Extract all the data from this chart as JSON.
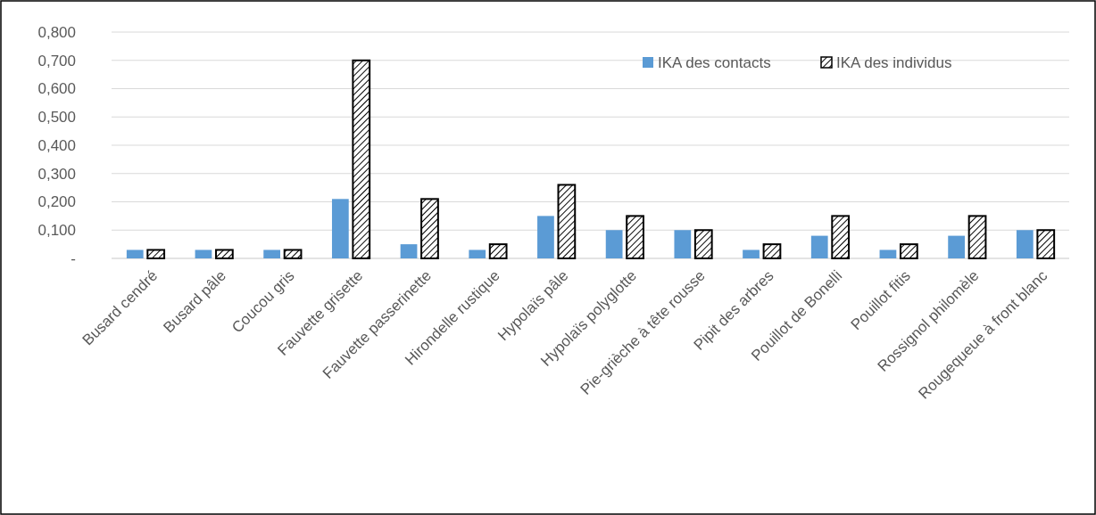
{
  "chart_data": {
    "type": "bar",
    "categories": [
      "Busard cendré",
      "Busard pâle",
      "Coucou gris",
      "Fauvette grisette",
      "Fauvette passerinette",
      "Hirondelle rustique",
      "Hypolaïs pâle",
      "Hypolaïs polyglotte",
      "Pie-grièche à tête rousse",
      "Pipit des arbres",
      "Pouillot de Bonelli",
      "Pouillot fitis",
      "Rossignol philomèle",
      "Rougequeue à front blanc"
    ],
    "series": [
      {
        "name": "IKA des contacts",
        "color": "#5b9bd5",
        "values": [
          0.03,
          0.03,
          0.03,
          0.21,
          0.05,
          0.03,
          0.15,
          0.1,
          0.1,
          0.03,
          0.08,
          0.03,
          0.08,
          0.1
        ]
      },
      {
        "name": "IKA des individus",
        "color": "#000000",
        "values": [
          0.03,
          0.03,
          0.03,
          0.7,
          0.21,
          0.05,
          0.26,
          0.15,
          0.1,
          0.05,
          0.15,
          0.05,
          0.15,
          0.1
        ]
      }
    ],
    "ylim": [
      0,
      0.8
    ],
    "yticks": [
      {
        "value": 0,
        "label": "-"
      },
      {
        "value": 0.1,
        "label": "0,100"
      },
      {
        "value": 0.2,
        "label": "0,200"
      },
      {
        "value": 0.3,
        "label": "0,300"
      },
      {
        "value": 0.4,
        "label": "0,400"
      },
      {
        "value": 0.5,
        "label": "0,500"
      },
      {
        "value": 0.6,
        "label": "0,600"
      },
      {
        "value": 0.7,
        "label": "0,700"
      },
      {
        "value": 0.8,
        "label": "0,800"
      }
    ],
    "grid": "y",
    "legend": "top right"
  }
}
